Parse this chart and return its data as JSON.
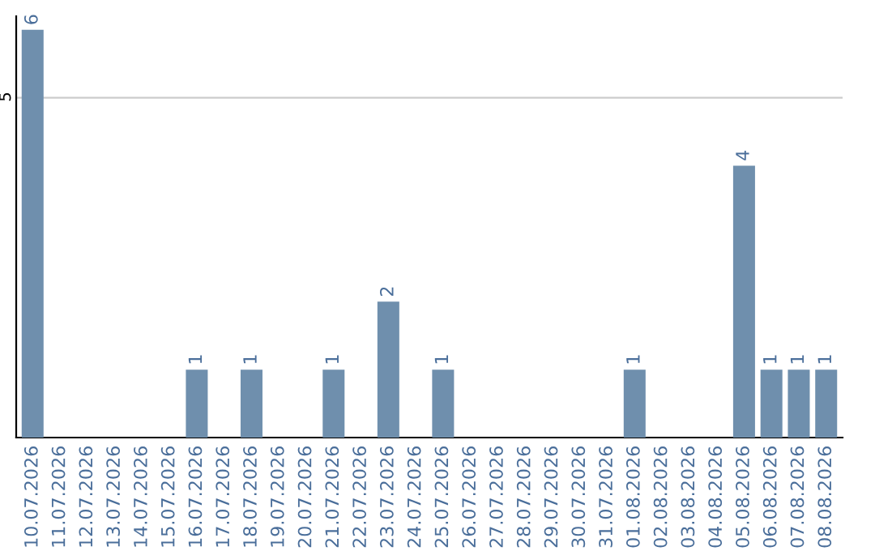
{
  "chart_data": {
    "type": "bar",
    "categories": [
      "10.07.2026",
      "11.07.2026",
      "12.07.2026",
      "13.07.2026",
      "14.07.2026",
      "15.07.2026",
      "16.07.2026",
      "17.07.2026",
      "18.07.2026",
      "19.07.2026",
      "20.07.2026",
      "21.07.2026",
      "22.07.2026",
      "23.07.2026",
      "24.07.2026",
      "25.07.2026",
      "26.07.2026",
      "27.07.2026",
      "28.07.2026",
      "29.07.2026",
      "30.07.2026",
      "31.07.2026",
      "01.08.2026",
      "02.08.2026",
      "03.08.2026",
      "04.08.2026",
      "05.08.2026",
      "06.08.2026",
      "07.08.2026",
      "08.08.2026"
    ],
    "values": [
      6,
      0,
      0,
      0,
      0,
      0,
      1,
      0,
      1,
      0,
      0,
      1,
      0,
      2,
      0,
      1,
      0,
      0,
      0,
      0,
      0,
      0,
      1,
      0,
      0,
      0,
      4,
      1,
      1,
      1
    ],
    "value_labels": [
      "6",
      null,
      null,
      null,
      null,
      null,
      "1",
      null,
      "1",
      null,
      null,
      "1",
      null,
      "2",
      null,
      "1",
      null,
      null,
      null,
      null,
      null,
      null,
      "1",
      null,
      null,
      null,
      "4",
      "1",
      "1",
      "1"
    ],
    "color": "#6f8fad",
    "ylim": [
      0,
      6.2
    ],
    "yticks": [
      5
    ],
    "grid": "y"
  }
}
